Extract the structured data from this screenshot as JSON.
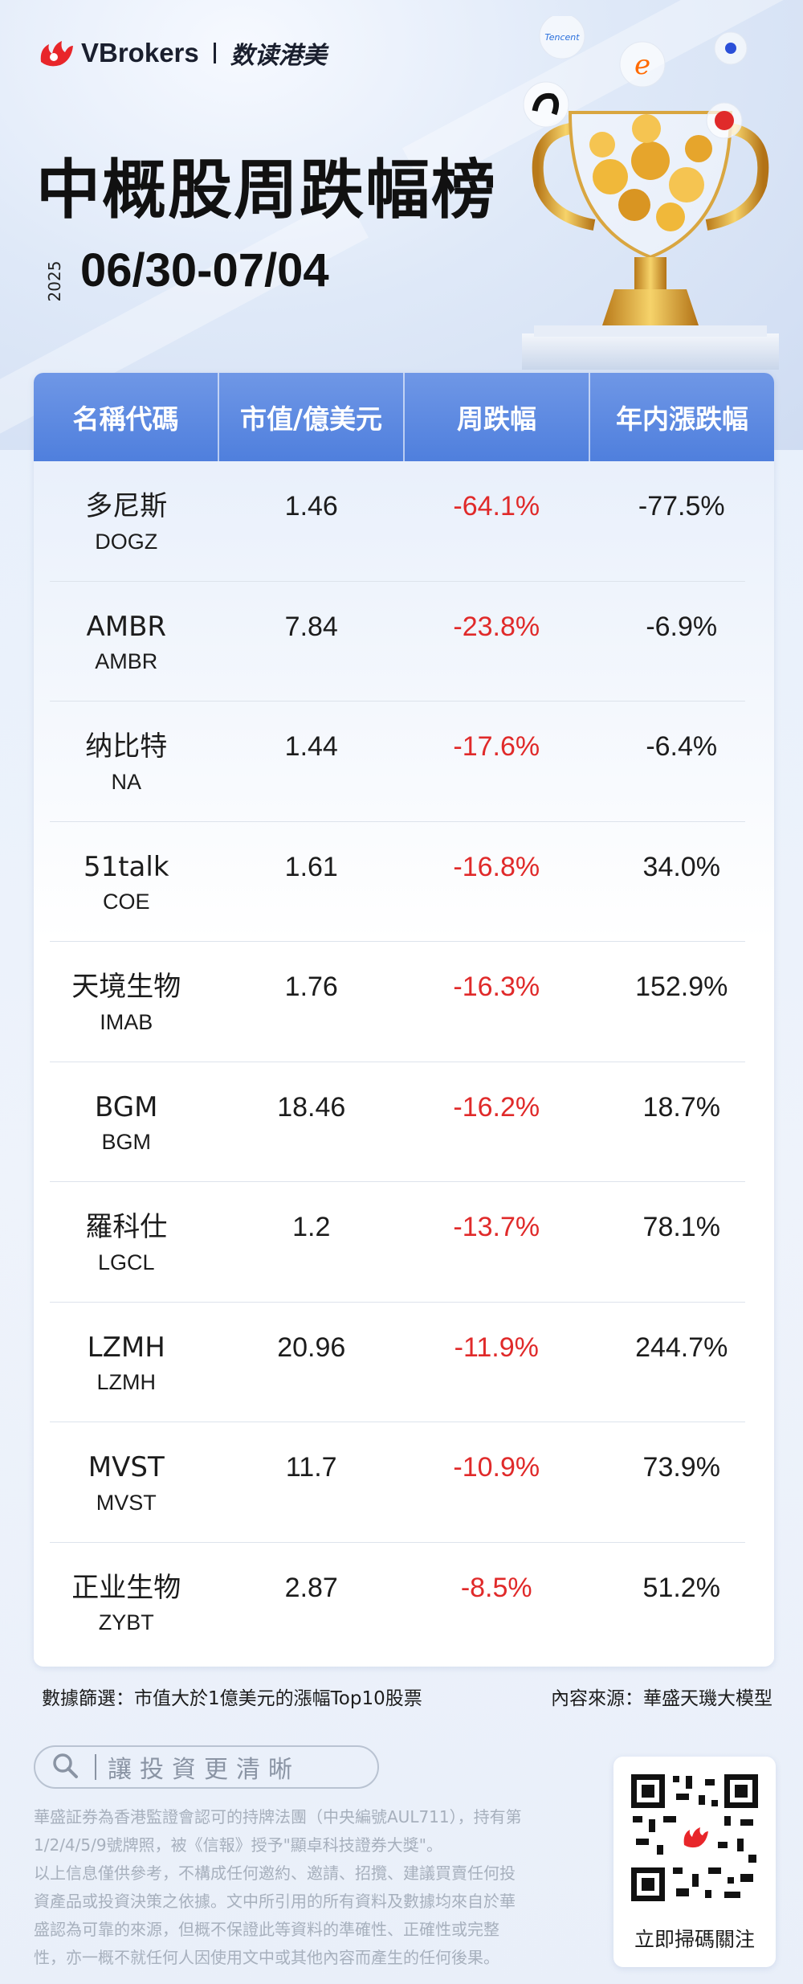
{
  "brand": {
    "name": "VBrokers",
    "sub": "数读港美"
  },
  "header": {
    "title": "中概股周跌幅榜",
    "year": "2025",
    "dates": "06/30-07/04"
  },
  "trophy": {
    "brand_labels": [
      "Tencent",
      "e"
    ]
  },
  "table": {
    "headers": [
      "名稱代碼",
      "市值/億美元",
      "周跌幅",
      "年内漲跌幅"
    ],
    "rows": [
      {
        "name": "多尼斯",
        "code": "DOGZ",
        "market_cap": "1.46",
        "week_change": "-64.1%",
        "ytd_change": "-77.5%"
      },
      {
        "name": "AMBR",
        "code": "AMBR",
        "market_cap": "7.84",
        "week_change": "-23.8%",
        "ytd_change": "-6.9%"
      },
      {
        "name": "纳比特",
        "code": "NA",
        "market_cap": "1.44",
        "week_change": "-17.6%",
        "ytd_change": "-6.4%"
      },
      {
        "name": "51talk",
        "code": "COE",
        "market_cap": "1.61",
        "week_change": "-16.8%",
        "ytd_change": "34.0%"
      },
      {
        "name": "天境生物",
        "code": "IMAB",
        "market_cap": "1.76",
        "week_change": "-16.3%",
        "ytd_change": "152.9%"
      },
      {
        "name": "BGM",
        "code": "BGM",
        "market_cap": "18.46",
        "week_change": "-16.2%",
        "ytd_change": "18.7%"
      },
      {
        "name": "羅科仕",
        "code": "LGCL",
        "market_cap": "1.2",
        "week_change": "-13.7%",
        "ytd_change": "78.1%"
      },
      {
        "name": "LZMH",
        "code": "LZMH",
        "market_cap": "20.96",
        "week_change": "-11.9%",
        "ytd_change": "244.7%"
      },
      {
        "name": "MVST",
        "code": "MVST",
        "market_cap": "11.7",
        "week_change": "-10.9%",
        "ytd_change": "73.9%"
      },
      {
        "name": "正业生物",
        "code": "ZYBT",
        "market_cap": "2.87",
        "week_change": "-8.5%",
        "ytd_change": "51.2%"
      }
    ]
  },
  "footer": {
    "filter_note": "數據篩選：市值大於1億美元的漲幅Top10股票",
    "source_note": "內容來源：華盛天璣大模型",
    "search_text": "讓投資更清晰",
    "disclaimer_lines": [
      "華盛証券為香港監證會認可的持牌法團（中央編號AUL711），持有第",
      "1/2/4/5/9號牌照，被《信報》授予\"顯卓科技證券大獎\"。",
      "以上信息僅供參考，不構成任何邀約、邀請、招攬、建議買賣任何投",
      "資產品或投資決策之依據。文中所引用的所有資料及數據均來自於華",
      "盛認為可靠的來源，但概不保證此等資料的準確性、正確性或完整",
      "性，亦一概不就任何人因使用文中或其他內容而產生的任何後果。"
    ],
    "qr_label": "立即掃碼關注"
  },
  "colors": {
    "header_blue": "#5a86e0",
    "negative_red": "#e02a2a",
    "text_dark": "#1c1c1c"
  }
}
